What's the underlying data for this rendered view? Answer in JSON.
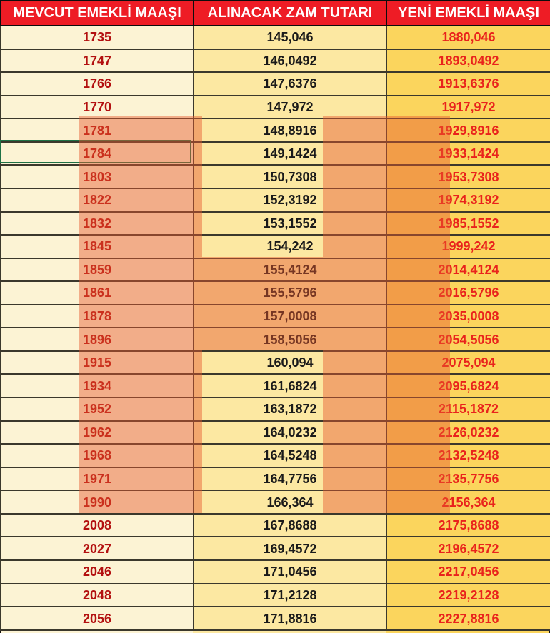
{
  "table": {
    "columns": [
      {
        "key": "mevcut",
        "label": "MEVCUT EMEKLİ MAAŞI"
      },
      {
        "key": "zam",
        "label": "ALINACAK ZAM TUTARI"
      },
      {
        "key": "yeni",
        "label": "YENİ EMEKLİ MAAŞI"
      }
    ],
    "rows": [
      {
        "mevcut": "1735",
        "zam": "145,046",
        "yeni": "1880,046"
      },
      {
        "mevcut": "1747",
        "zam": "146,0492",
        "yeni": "1893,0492"
      },
      {
        "mevcut": "1766",
        "zam": "147,6376",
        "yeni": "1913,6376"
      },
      {
        "mevcut": "1770",
        "zam": "147,972",
        "yeni": "1917,972"
      },
      {
        "mevcut": "1781",
        "zam": "148,8916",
        "yeni": "1929,8916"
      },
      {
        "mevcut": "1784",
        "zam": "149,1424",
        "yeni": "1933,1424"
      },
      {
        "mevcut": "1803",
        "zam": "150,7308",
        "yeni": "1953,7308"
      },
      {
        "mevcut": "1822",
        "zam": "152,3192",
        "yeni": "1974,3192"
      },
      {
        "mevcut": "1832",
        "zam": "153,1552",
        "yeni": "1985,1552"
      },
      {
        "mevcut": "1845",
        "zam": "154,242",
        "yeni": "1999,242"
      },
      {
        "mevcut": "1859",
        "zam": "155,4124",
        "yeni": "2014,4124"
      },
      {
        "mevcut": "1861",
        "zam": "155,5796",
        "yeni": "2016,5796"
      },
      {
        "mevcut": "1878",
        "zam": "157,0008",
        "yeni": "2035,0008"
      },
      {
        "mevcut": "1896",
        "zam": "158,5056",
        "yeni": "2054,5056"
      },
      {
        "mevcut": "1915",
        "zam": "160,094",
        "yeni": "2075,094"
      },
      {
        "mevcut": "1934",
        "zam": "161,6824",
        "yeni": "2095,6824"
      },
      {
        "mevcut": "1952",
        "zam": "163,1872",
        "yeni": "2115,1872"
      },
      {
        "mevcut": "1962",
        "zam": "164,0232",
        "yeni": "2126,0232"
      },
      {
        "mevcut": "1968",
        "zam": "164,5248",
        "yeni": "2132,5248"
      },
      {
        "mevcut": "1971",
        "zam": "164,7756",
        "yeni": "2135,7756"
      },
      {
        "mevcut": "1990",
        "zam": "166,364",
        "yeni": "2156,364"
      },
      {
        "mevcut": "2008",
        "zam": "167,8688",
        "yeni": "2175,8688"
      },
      {
        "mevcut": "2027",
        "zam": "169,4572",
        "yeni": "2196,4572"
      },
      {
        "mevcut": "2046",
        "zam": "171,0456",
        "yeni": "2217,0456"
      },
      {
        "mevcut": "2048",
        "zam": "171,2128",
        "yeni": "2219,2128"
      },
      {
        "mevcut": "2056",
        "zam": "171,8816",
        "yeni": "2227,8816"
      }
    ],
    "highlighted_mevcut_range": [
      "1781",
      "1990"
    ]
  },
  "colors": {
    "header_bg": "#ee1c25",
    "header_text": "#ffffff",
    "col1_bg": "#fcf3d4",
    "col1_text": "#b31010",
    "col2_bg": "#fce8a2",
    "col2_text": "#1a1a1a",
    "col3_bg": "#fbd55d",
    "col3_text": "#e9231c",
    "highlight_rgba": "rgba(231,88,47,0.45)",
    "selection_green": "#1e7145"
  }
}
